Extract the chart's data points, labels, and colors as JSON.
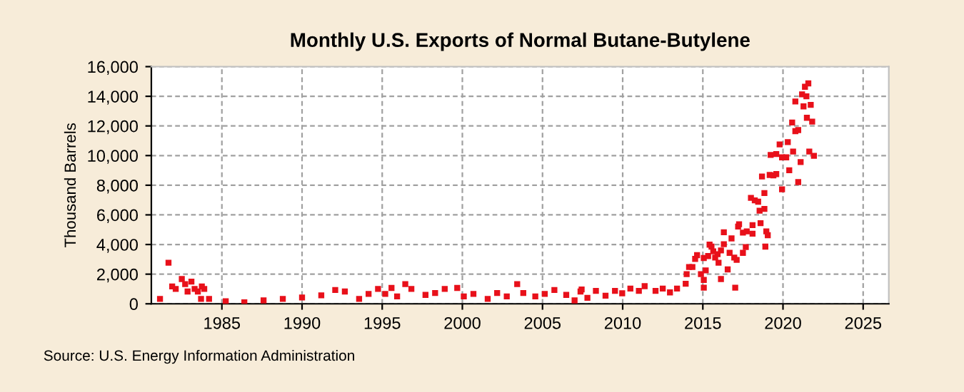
{
  "chart_data": {
    "type": "scatter",
    "title": "Monthly U.S. Exports of Normal Butane-Butylene",
    "ylabel": "Thousand Barrels",
    "annotations": [
      "Source: U.S. Energy Information Administration"
    ],
    "marker": "square",
    "grid": true,
    "legend": false,
    "xlim": [
      1980.6,
      2026.6
    ],
    "xticks": [
      1985,
      1990,
      1995,
      2000,
      2005,
      2010,
      2015,
      2020,
      2025
    ],
    "ylim": [
      0,
      16000
    ],
    "yticks": [
      {
        "value": 0,
        "label": "0"
      },
      {
        "value": 2000,
        "label": "2,000"
      },
      {
        "value": 4000,
        "label": "4,000"
      },
      {
        "value": 6000,
        "label": "6,000"
      },
      {
        "value": 8000,
        "label": "8,000"
      },
      {
        "value": 10000,
        "label": "10,000"
      },
      {
        "value": 12000,
        "label": "12,000"
      },
      {
        "value": 14000,
        "label": "14,000"
      },
      {
        "value": 16000,
        "label": "16,000"
      }
    ],
    "series": [
      {
        "color": "#e8101a",
        "x": [
          1981.14,
          1981.67,
          1981.9,
          1982.12,
          1982.5,
          1982.71,
          1982.86,
          1983.1,
          1983.3,
          1983.5,
          1983.7,
          1983.75,
          1983.9,
          1984.2,
          1985.24,
          1986.4,
          1987.6,
          1988.8,
          1990.0,
          1991.2,
          1992.07,
          1992.67,
          1993.56,
          1994.15,
          1994.74,
          1995.19,
          1995.58,
          1995.93,
          1996.44,
          1996.82,
          1997.7,
          1998.3,
          1998.9,
          1999.68,
          2000.09,
          2000.69,
          2001.58,
          2002.17,
          2002.77,
          2003.42,
          2003.8,
          2004.55,
          2005.14,
          2005.74,
          2006.48,
          2007.0,
          2007.37,
          2007.44,
          2007.8,
          2008.33,
          2008.93,
          2009.52,
          2009.97,
          2010.48,
          2011.01,
          2011.37,
          2012.05,
          2012.5,
          2012.95,
          2013.39,
          2013.93,
          2013.99,
          2014.14,
          2014.35,
          2014.52,
          2014.64,
          2014.88,
          2015.06,
          2015.06,
          2015.06,
          2015.18,
          2015.33,
          2015.42,
          2015.54,
          2015.65,
          2015.77,
          2015.92,
          2015.98,
          2016.13,
          2016.13,
          2016.31,
          2016.31,
          2016.55,
          2016.67,
          2016.79,
          2016.96,
          2017.02,
          2017.11,
          2017.2,
          2017.26,
          2017.5,
          2017.5,
          2017.68,
          2017.74,
          2018.0,
          2018.1,
          2018.1,
          2018.24,
          2018.45,
          2018.54,
          2018.6,
          2018.69,
          2018.84,
          2018.84,
          2018.9,
          2018.96,
          2019.05,
          2019.17,
          2019.23,
          2019.4,
          2019.58,
          2019.58,
          2019.79,
          2019.94,
          2019.94,
          2020.2,
          2020.3,
          2020.39,
          2020.57,
          2020.63,
          2020.77,
          2020.77,
          2020.95,
          2020.95,
          2021.1,
          2021.19,
          2021.28,
          2021.37,
          2021.46,
          2021.49,
          2021.58,
          2021.64,
          2021.73,
          2021.82,
          2021.93
        ],
        "values": [
          330,
          2770,
          1170,
          1000,
          1670,
          1330,
          830,
          1500,
          1000,
          830,
          330,
          1170,
          1000,
          330,
          170,
          100,
          230,
          330,
          430,
          570,
          930,
          830,
          330,
          670,
          1000,
          670,
          1070,
          500,
          1330,
          1000,
          600,
          730,
          1000,
          1070,
          500,
          670,
          330,
          730,
          500,
          1330,
          730,
          500,
          670,
          930,
          600,
          230,
          830,
          970,
          400,
          870,
          550,
          870,
          710,
          1030,
          870,
          1190,
          870,
          1030,
          770,
          1030,
          1350,
          2000,
          2480,
          2480,
          3030,
          3280,
          2000,
          3090,
          1610,
          1090,
          2250,
          3220,
          3990,
          3860,
          3540,
          3120,
          3350,
          2770,
          3600,
          1670,
          4830,
          4020,
          2320,
          3440,
          4410,
          3120,
          1090,
          2960,
          5210,
          5370,
          4800,
          3440,
          3830,
          4890,
          7150,
          5310,
          4730,
          6980,
          6890,
          6280,
          5440,
          8590,
          7470,
          6400,
          3860,
          4890,
          4630,
          8690,
          10040,
          8660,
          10100,
          8750,
          10750,
          9880,
          7720,
          9880,
          10910,
          9010,
          12230,
          10270,
          13650,
          11650,
          11720,
          8210,
          9560,
          14130,
          13320,
          14640,
          14000,
          12550,
          14870,
          10270,
          13420,
          12290,
          9980
        ]
      }
    ]
  }
}
